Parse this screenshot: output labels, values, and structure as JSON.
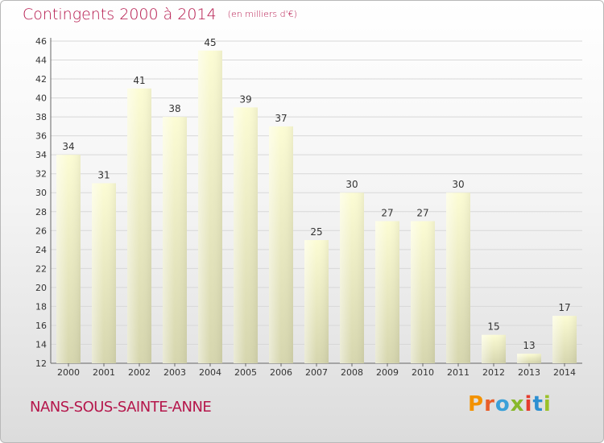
{
  "title": "Contingents 2000 à 2014",
  "subtitle": "(en milliers d'€)",
  "commune": "NANS-SOUS-SAINTE-ANNE",
  "logo": {
    "letters": [
      "P",
      "r",
      "o",
      "x",
      "i",
      "t",
      "i"
    ]
  },
  "colors": {
    "accent": "#b5164b",
    "bar_top": "#fcfcd4",
    "bar_bottom": "#d6d6ae",
    "grid": "#d8d8d8"
  },
  "chart_data": {
    "type": "bar",
    "categories": [
      "2000",
      "2001",
      "2002",
      "2003",
      "2004",
      "2005",
      "2006",
      "2007",
      "2008",
      "2009",
      "2010",
      "2011",
      "2012",
      "2013",
      "2014"
    ],
    "values": [
      34,
      31,
      41,
      38,
      45,
      39,
      37,
      25,
      30,
      27,
      27,
      30,
      15,
      13,
      17
    ],
    "ylim": [
      12,
      46
    ],
    "yticks": [
      12,
      14,
      16,
      18,
      20,
      22,
      24,
      26,
      28,
      30,
      32,
      34,
      36,
      38,
      40,
      42,
      44,
      46
    ],
    "grid": true,
    "data_labels": true
  }
}
